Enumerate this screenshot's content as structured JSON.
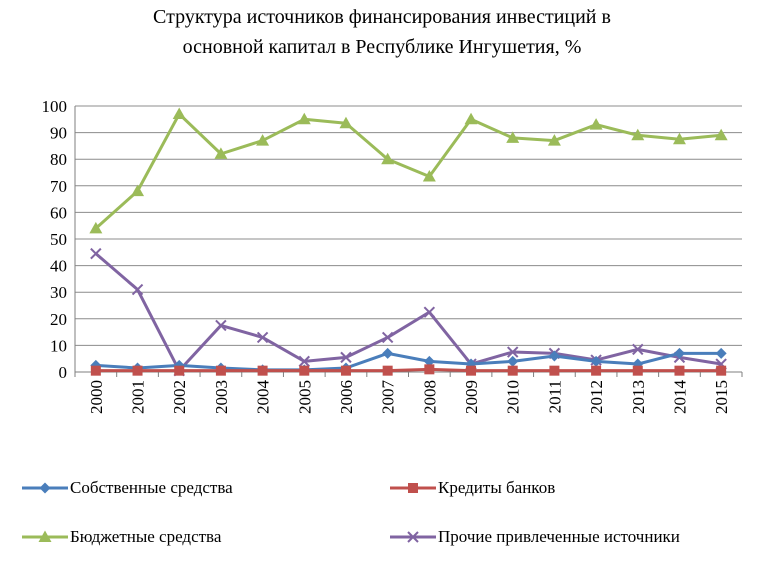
{
  "chart_data": {
    "type": "line",
    "title_lines": [
      "Структура источников финансирования инвестиций в",
      "основной капитал в Республике Ингушетия, %"
    ],
    "categories": [
      "2000",
      "2001",
      "2002",
      "2003",
      "2004",
      "2005",
      "2006",
      "2007",
      "2008",
      "2009",
      "2010",
      "2011",
      "2012",
      "2013",
      "2014",
      "2015"
    ],
    "yticks": [
      "0",
      "10",
      "20",
      "30",
      "40",
      "50",
      "60",
      "70",
      "80",
      "90",
      "100"
    ],
    "ylim": [
      0,
      100
    ],
    "grid": true,
    "legend_position": "bottom",
    "series": [
      {
        "name": "Собственные средства",
        "color": "#4a7ebb",
        "marker": "diamond",
        "values": [
          2.5,
          1.5,
          2.5,
          1.5,
          0.8,
          0.8,
          1.5,
          7,
          4,
          3,
          4,
          6,
          4,
          3,
          7,
          7
        ]
      },
      {
        "name": "Кредиты банков",
        "color": "#c0504d",
        "marker": "square",
        "values": [
          0.5,
          0.5,
          0.5,
          0.5,
          0.5,
          0.5,
          0.5,
          0.5,
          1,
          0.5,
          0.5,
          0.5,
          0.5,
          0.5,
          0.5,
          0.5
        ]
      },
      {
        "name": "Бюджетные средства",
        "color": "#9bbb59",
        "marker": "triangle",
        "values": [
          54,
          68,
          97,
          82,
          87,
          95,
          93.5,
          80,
          73.5,
          95,
          88,
          87,
          93,
          89,
          87.5,
          89
        ]
      },
      {
        "name": "Прочие привлеченные источники",
        "color": "#8064a2",
        "marker": "x",
        "values": [
          44.5,
          31,
          0.5,
          17.5,
          13,
          4,
          5.5,
          13,
          22.5,
          3,
          7.5,
          7,
          4.5,
          8.5,
          5.5,
          3
        ]
      }
    ]
  }
}
